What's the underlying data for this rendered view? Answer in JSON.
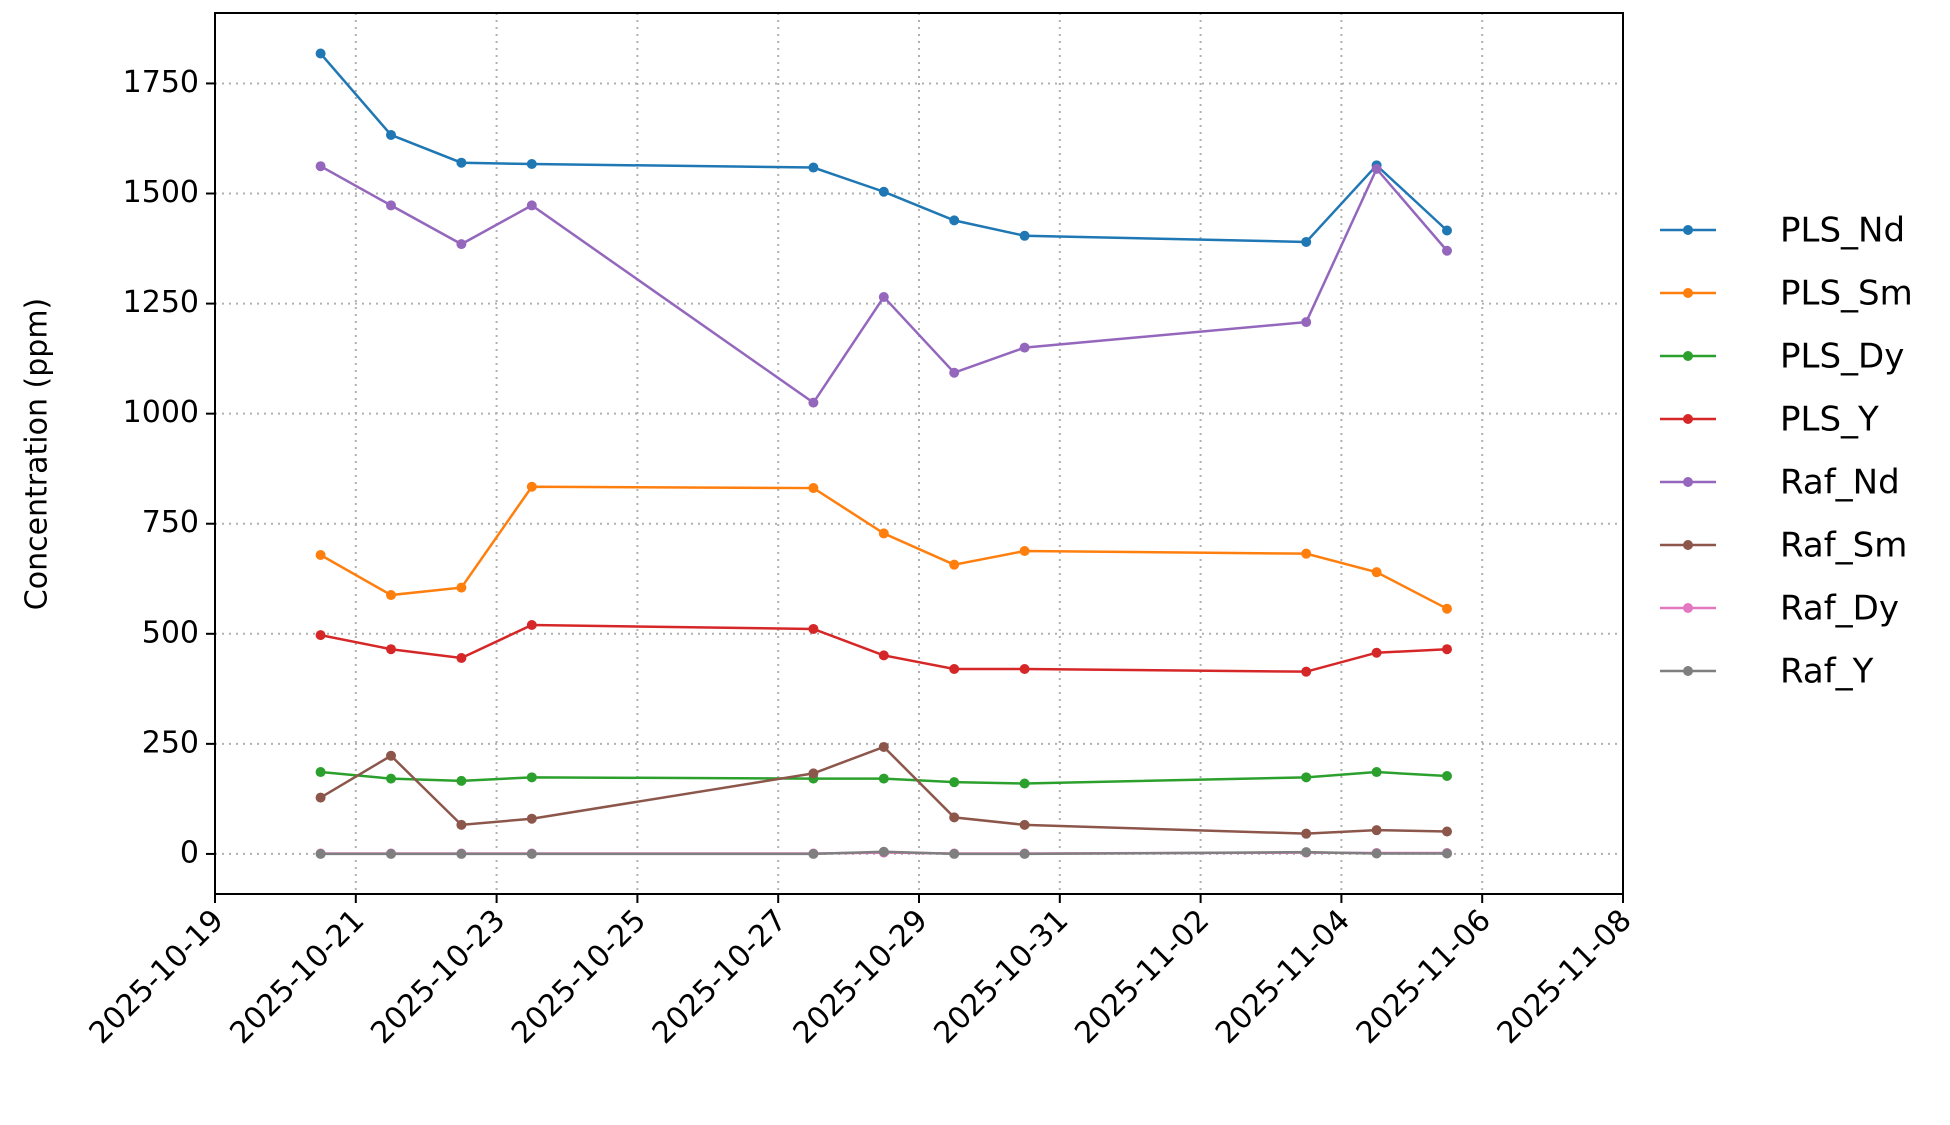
{
  "chart_data": {
    "type": "line",
    "y_label": "Concentration (ppm)",
    "x": [
      "2025-10-20",
      "2025-10-21",
      "2025-10-22",
      "2025-10-23",
      "2025-10-27",
      "2025-10-28",
      "2025-10-29",
      "2025-10-30",
      "2025-11-03",
      "2025-11-04",
      "2025-11-05"
    ],
    "series": [
      {
        "name": "PLS_Nd",
        "color": "#1f77b4",
        "values": [
          1818,
          1633,
          1570,
          1567,
          1559,
          1504,
          1439,
          1404,
          1390,
          1564,
          1416
        ]
      },
      {
        "name": "PLS_Sm",
        "color": "#ff7f0e",
        "values": [
          679,
          588,
          605,
          834,
          831,
          728,
          657,
          688,
          682,
          640,
          557
        ]
      },
      {
        "name": "PLS_Dy",
        "color": "#2ca02c",
        "values": [
          186,
          171,
          166,
          174,
          171,
          171,
          163,
          160,
          174,
          186,
          177
        ]
      },
      {
        "name": "PLS_Y",
        "color": "#d62728",
        "values": [
          497,
          465,
          445,
          520,
          511,
          451,
          420,
          420,
          414,
          457,
          465
        ]
      },
      {
        "name": "Raf_Nd",
        "color": "#9467bd",
        "values": [
          1562,
          1473,
          1385,
          1473,
          1025,
          1265,
          1093,
          1150,
          1208,
          1556,
          1370
        ]
      },
      {
        "name": "Raf_Sm",
        "color": "#8c564b",
        "values": [
          128,
          223,
          66,
          80,
          183,
          243,
          83,
          66,
          46,
          54,
          51
        ]
      },
      {
        "name": "Raf_Dy",
        "color": "#e377c2",
        "values": [
          1,
          1,
          1,
          1,
          1,
          3,
          1,
          1,
          3,
          2,
          2
        ]
      },
      {
        "name": "Raf_Y",
        "color": "#7f7f7f",
        "values": [
          0,
          0,
          0,
          0,
          0,
          5,
          0,
          0,
          4,
          1,
          1
        ]
      }
    ],
    "xlim": [
      "2025-10-19",
      "2025-11-08"
    ],
    "xticks": [
      "2025-10-19",
      "2025-10-21",
      "2025-10-23",
      "2025-10-25",
      "2025-10-27",
      "2025-10-29",
      "2025-10-31",
      "2025-11-02",
      "2025-11-04",
      "2025-11-06",
      "2025-11-08"
    ],
    "ylim": [
      -91,
      1910
    ],
    "yticks": [
      0,
      250,
      500,
      750,
      1000,
      1250,
      1500,
      1750
    ],
    "grid": true,
    "legend": "right"
  }
}
